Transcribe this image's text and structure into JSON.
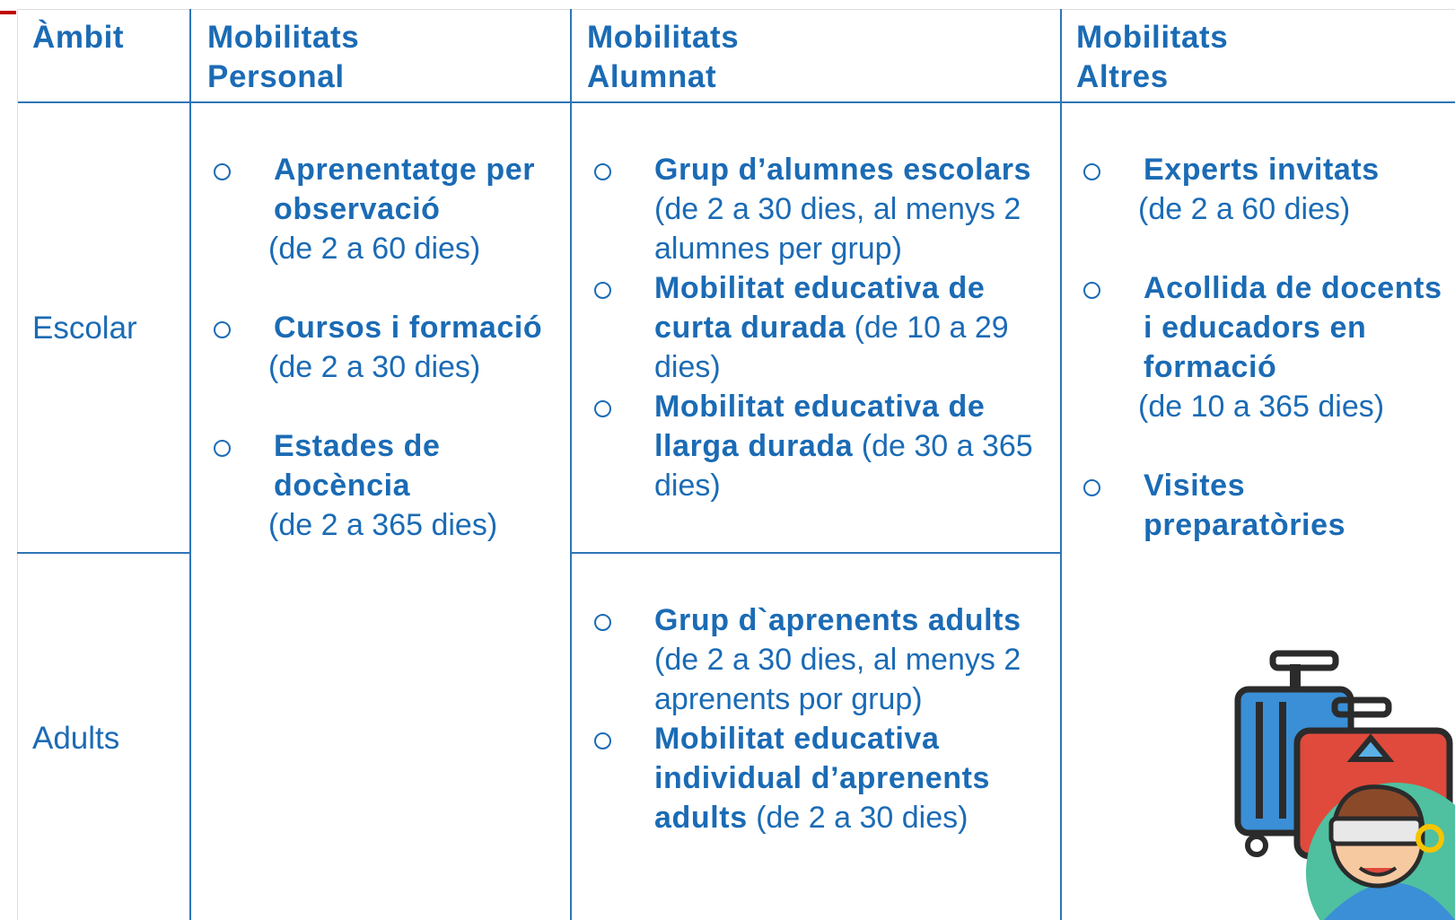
{
  "header": {
    "ambit": "Àmbit",
    "personal": [
      "Mobilitats",
      "Personal"
    ],
    "alumnat": [
      "Mobilitats",
      "Alumnat"
    ],
    "altres": [
      "Mobilitats",
      "Altres"
    ]
  },
  "rows": [
    "Escolar",
    "Adults"
  ],
  "personal": [
    {
      "bold": "Aprenentatge per observació",
      "detail": "(de 2 a 60 dies)"
    },
    {
      "bold": "Cursos i formació",
      "detail": "(de 2 a 30 dies)"
    },
    {
      "bold": "Estades de docència",
      "detail": "(de 2 a 365 dies)"
    }
  ],
  "alumnat_escolar": [
    {
      "bold": "Grup d’alumnes escolars",
      "detail": "(de 2 a 30 dies, al menys 2 alumnes per grup)"
    },
    {
      "bold": "Mobilitat educativa de curta durada",
      "detail": "(de 10 a 29 dies)"
    },
    {
      "bold": "Mobilitat educativa de llarga durada",
      "detail": "(de 30 a 365 dies)"
    }
  ],
  "alumnat_adults": [
    {
      "bold": "Grup d`aprenents adults",
      "detail": "(de 2 a 30 dies, al menys 2 aprenents por grup)"
    },
    {
      "bold": "Mobilitat educativa individual d’aprenents adults",
      "detail": "(de 2 a 30 dies)"
    }
  ],
  "altres": [
    {
      "bold": "Experts invitats",
      "detail": "(de 2 a 60 dies)"
    },
    {
      "bold": "Acollida de docents i educadors en formació",
      "detail": "(de 10 a 365 dies)"
    },
    {
      "bold": "Visites preparatòries"
    }
  ]
}
